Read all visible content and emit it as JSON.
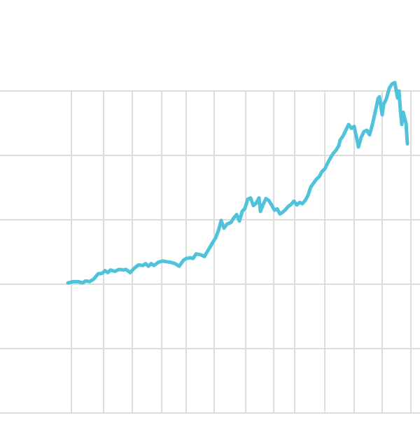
{
  "chart_data": {
    "type": "line",
    "x": [
      97,
      105,
      112,
      118,
      122,
      128,
      134,
      140,
      146,
      150,
      154,
      158,
      164,
      170,
      176,
      180,
      186,
      192,
      198,
      204,
      208,
      212,
      216,
      220,
      226,
      232,
      238,
      244,
      250,
      256,
      262,
      266,
      272,
      276,
      280,
      286,
      292,
      298,
      304,
      308,
      312,
      316,
      320,
      324,
      330,
      334,
      338,
      342,
      346,
      350,
      354,
      358,
      362,
      366,
      370,
      372,
      376,
      380,
      384,
      388,
      392,
      396,
      400,
      404,
      408,
      412,
      416,
      420,
      424,
      428,
      432,
      436,
      440,
      444,
      448,
      452,
      456,
      460,
      464,
      468,
      472,
      476,
      480,
      484,
      486,
      490,
      494,
      498,
      502,
      506,
      510,
      512,
      516,
      520,
      524,
      528,
      532,
      536,
      540,
      542,
      546,
      548,
      552,
      556,
      560,
      564,
      568,
      570,
      572,
      574,
      576,
      580,
      582
    ],
    "series": [
      {
        "color": "#4ec3db",
        "values": [
          2.02,
          2.04,
          2.04,
          2.02,
          2.05,
          2.04,
          2.08,
          2.16,
          2.17,
          2.21,
          2.18,
          2.22,
          2.2,
          2.23,
          2.22,
          2.23,
          2.18,
          2.25,
          2.3,
          2.29,
          2.32,
          2.28,
          2.32,
          2.29,
          2.34,
          2.36,
          2.35,
          2.34,
          2.32,
          2.28,
          2.37,
          2.4,
          2.41,
          2.4,
          2.47,
          2.46,
          2.43,
          2.54,
          2.65,
          2.72,
          2.83,
          2.99,
          2.87,
          2.93,
          2.96,
          3.03,
          3.08,
          2.98,
          3.13,
          3.18,
          3.32,
          3.34,
          3.22,
          3.26,
          3.34,
          3.13,
          3.24,
          3.33,
          3.3,
          3.23,
          3.15,
          3.17,
          3.09,
          3.12,
          3.16,
          3.21,
          3.24,
          3.29,
          3.23,
          3.27,
          3.25,
          3.3,
          3.38,
          3.51,
          3.57,
          3.63,
          3.67,
          3.75,
          3.79,
          3.88,
          3.96,
          4.03,
          4.08,
          4.15,
          4.24,
          4.3,
          4.39,
          4.48,
          4.42,
          4.45,
          4.24,
          4.13,
          4.28,
          4.37,
          4.39,
          4.32,
          4.48,
          4.67,
          4.88,
          4.91,
          4.63,
          4.79,
          4.88,
          5.04,
          5.11,
          5.13,
          4.89,
          5.0,
          4.7,
          4.48,
          4.67,
          4.5,
          4.18
        ]
      }
    ],
    "xlim": [
      0,
      600
    ],
    "xticks": [
      102,
      148,
      189,
      231,
      266,
      306,
      351,
      391,
      421,
      464,
      506,
      546,
      587
    ],
    "ylim": [
      0,
      5
    ],
    "yticks": [
      0,
      1,
      2,
      3,
      4,
      5
    ],
    "grid": true
  }
}
